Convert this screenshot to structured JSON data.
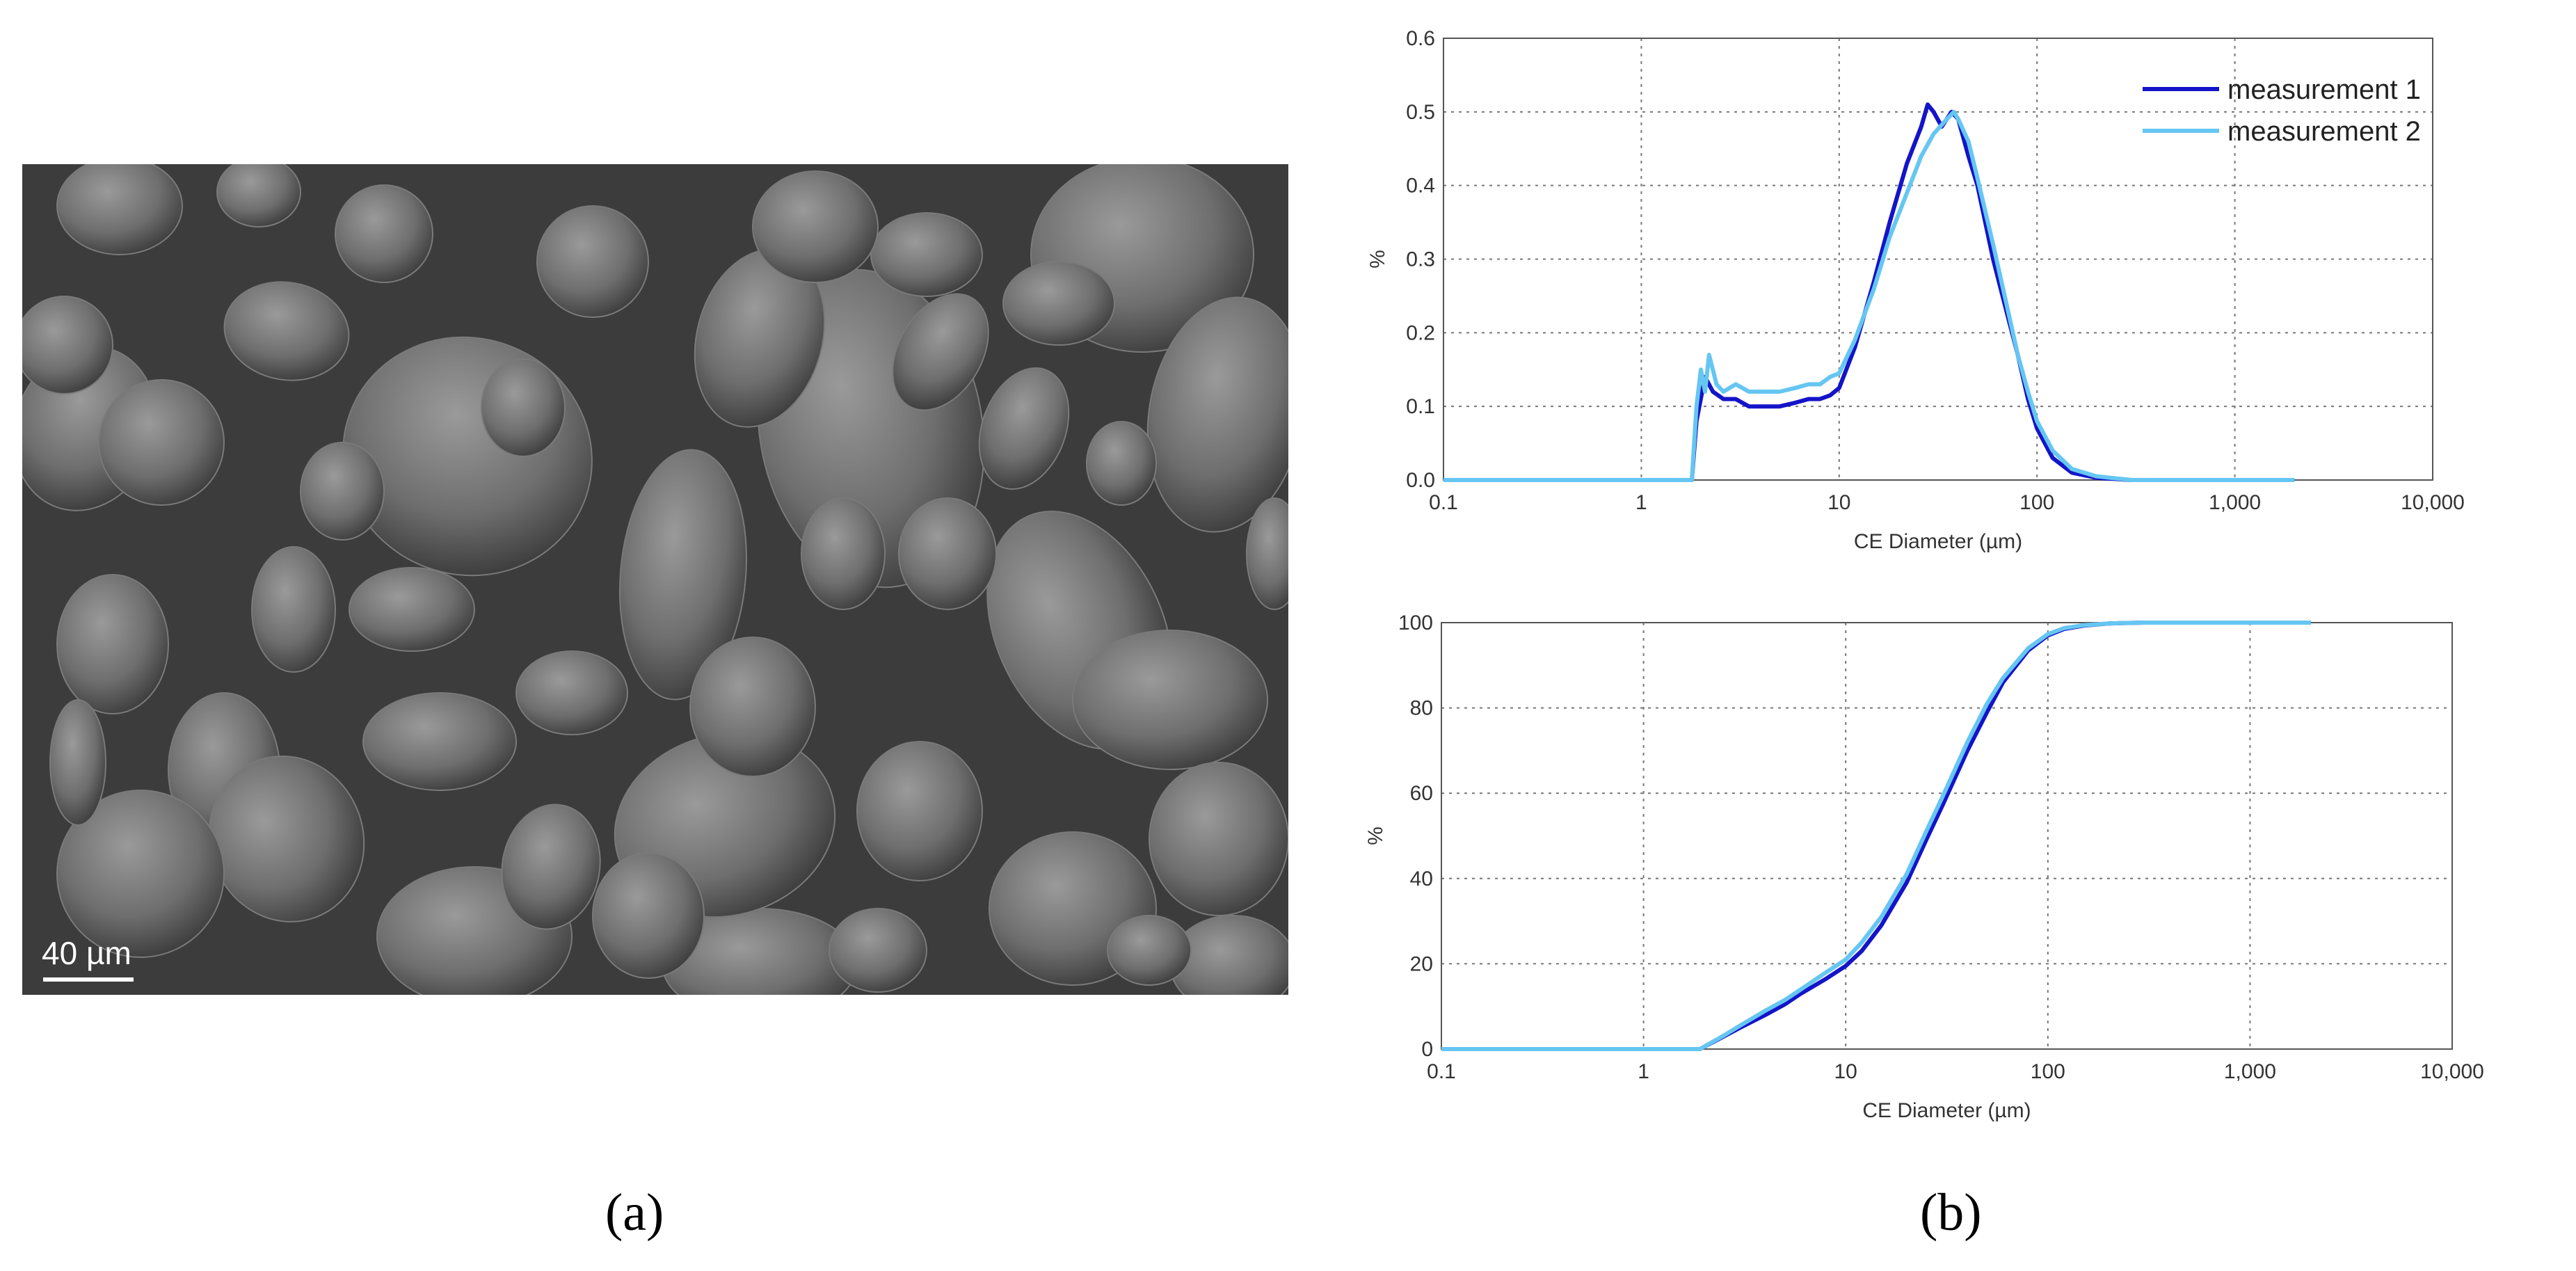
{
  "panels": {
    "a_label": "(a)",
    "b_label": "(b)"
  },
  "sem_image": {
    "scale_bar_text": "40 µm",
    "background_color": "#3c3c3c",
    "particle_color": "#7a7a7a"
  },
  "chart_data": [
    {
      "type": "line",
      "title": "",
      "xlabel": "CE Diameter (µm)",
      "ylabel": "%",
      "xscale": "log",
      "xlim": [
        0.1,
        10000
      ],
      "ylim": [
        0,
        0.6
      ],
      "x_ticks": [
        0.1,
        1,
        10,
        100,
        1000,
        10000
      ],
      "x_tick_labels": [
        "0.1",
        "1",
        "10",
        "100",
        "1,000",
        "10,000"
      ],
      "y_ticks": [
        0,
        0.1,
        0.2,
        0.3,
        0.4,
        0.5,
        0.6
      ],
      "y_tick_labels": [
        "0.0",
        "0.1",
        "0.2",
        "0.3",
        "0.4",
        "0.5",
        "0.6"
      ],
      "grid": true,
      "legend_position": "top-right",
      "series": [
        {
          "name": "measurement 1",
          "color": "#1414c8",
          "x": [
            0.1,
            1.8,
            1.9,
            2.1,
            2.3,
            2.6,
            3,
            3.5,
            4,
            5,
            6,
            7,
            8,
            9,
            10,
            12,
            15,
            18,
            22,
            26,
            28,
            30,
            33,
            37,
            40,
            45,
            50,
            60,
            70,
            80,
            90,
            100,
            120,
            150,
            200,
            300,
            500,
            1000,
            2000
          ],
          "y": [
            0.0,
            0.0,
            0.08,
            0.14,
            0.12,
            0.11,
            0.11,
            0.1,
            0.1,
            0.1,
            0.105,
            0.11,
            0.11,
            0.115,
            0.125,
            0.18,
            0.27,
            0.35,
            0.43,
            0.48,
            0.51,
            0.5,
            0.48,
            0.5,
            0.49,
            0.44,
            0.4,
            0.3,
            0.23,
            0.17,
            0.11,
            0.07,
            0.03,
            0.01,
            0.003,
            0.0,
            0.0,
            0.0,
            0.0
          ]
        },
        {
          "name": "measurement 2",
          "color": "#66c6f2",
          "x": [
            0.1,
            1.8,
            1.9,
            2.0,
            2.1,
            2.2,
            2.4,
            2.6,
            3,
            3.5,
            4,
            5,
            6,
            7,
            8,
            9,
            10,
            12,
            15,
            18,
            22,
            26,
            30,
            35,
            38,
            40,
            45,
            50,
            60,
            70,
            80,
            90,
            100,
            120,
            150,
            200,
            300,
            500,
            1000,
            2000
          ],
          "y": [
            0.0,
            0.0,
            0.1,
            0.15,
            0.12,
            0.17,
            0.13,
            0.12,
            0.13,
            0.12,
            0.12,
            0.12,
            0.125,
            0.13,
            0.13,
            0.14,
            0.145,
            0.19,
            0.26,
            0.33,
            0.39,
            0.44,
            0.47,
            0.49,
            0.5,
            0.49,
            0.46,
            0.41,
            0.32,
            0.24,
            0.17,
            0.12,
            0.08,
            0.04,
            0.015,
            0.005,
            0.0,
            0.0,
            0.0,
            0.0
          ]
        }
      ]
    },
    {
      "type": "line",
      "title": "",
      "xlabel": "CE Diameter (µm)",
      "ylabel": "%",
      "xscale": "log",
      "xlim": [
        0.1,
        10000
      ],
      "ylim": [
        0,
        100
      ],
      "x_ticks": [
        0.1,
        1,
        10,
        100,
        1000,
        10000
      ],
      "x_tick_labels": [
        "0.1",
        "1",
        "10",
        "100",
        "1,000",
        "10,000"
      ],
      "y_ticks": [
        0,
        20,
        40,
        60,
        80,
        100
      ],
      "y_tick_labels": [
        "0",
        "20",
        "40",
        "60",
        "80",
        "100"
      ],
      "grid": true,
      "series": [
        {
          "name": "",
          "color": "#1414c8",
          "x": [
            0.1,
            1.9,
            2.5,
            3,
            4,
            5,
            6,
            8,
            10,
            12,
            15,
            20,
            25,
            30,
            40,
            50,
            60,
            80,
            100,
            120,
            150,
            200,
            300,
            500,
            1000,
            2000
          ],
          "y": [
            0,
            0,
            3,
            5,
            8,
            10.5,
            13,
            16.5,
            19.5,
            23,
            29,
            39,
            49,
            57,
            70,
            79,
            86,
            93.5,
            97,
            98.5,
            99.3,
            99.8,
            100,
            100,
            100,
            100
          ]
        },
        {
          "name": "",
          "color": "#66c6f2",
          "x": [
            0.1,
            1.9,
            2.5,
            3,
            4,
            5,
            6,
            8,
            10,
            12,
            15,
            20,
            25,
            30,
            40,
            50,
            60,
            80,
            100,
            120,
            150,
            200,
            300,
            500,
            1000,
            2000
          ],
          "y": [
            0,
            0,
            3.2,
            5.5,
            9,
            11.5,
            14,
            18,
            21,
            25,
            31,
            41,
            51,
            59,
            72,
            81,
            87,
            94,
            97.3,
            98.7,
            99.4,
            99.8,
            100,
            100,
            100,
            100
          ]
        }
      ]
    }
  ]
}
